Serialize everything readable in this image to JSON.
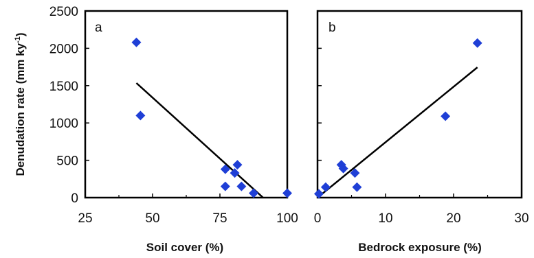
{
  "colors": {
    "marker": "#1f3fd6",
    "axis": "#000000",
    "fit_line": "#000000"
  },
  "shared_ylabel": "Denudation rate (mm ky",
  "shared_ylabel_superscript": "-1",
  "shared_ylabel_suffix": ")",
  "chart_data": [
    {
      "type": "scatter",
      "panel_label": "a",
      "xlabel": "Soil cover (%)",
      "ylabel": "Denudation rate (mm ky-1)",
      "xlim": [
        25,
        100
      ],
      "ylim": [
        0,
        2500
      ],
      "xticks": [
        "25",
        "50",
        "75",
        "100"
      ],
      "yticks": [
        "0",
        "500",
        "1000",
        "1500",
        "2000",
        "2500"
      ],
      "points": [
        {
          "x": 44,
          "y": 2080
        },
        {
          "x": 45.5,
          "y": 1100
        },
        {
          "x": 77,
          "y": 380
        },
        {
          "x": 77,
          "y": 150
        },
        {
          "x": 80.5,
          "y": 330
        },
        {
          "x": 81.5,
          "y": 440
        },
        {
          "x": 83,
          "y": 150
        },
        {
          "x": 87.5,
          "y": 60
        },
        {
          "x": 100,
          "y": 60
        }
      ],
      "fit_line": [
        {
          "x": 44,
          "y": 1535
        },
        {
          "x": 91,
          "y": 0
        }
      ]
    },
    {
      "type": "scatter",
      "panel_label": "b",
      "xlabel": "Bedrock exposure (%)",
      "ylabel": "",
      "xlim": [
        0,
        30
      ],
      "ylim": [
        0,
        2500
      ],
      "xticks": [
        "0",
        "10",
        "20",
        "30"
      ],
      "yticks": [],
      "points": [
        {
          "x": 0.2,
          "y": 50
        },
        {
          "x": 1.2,
          "y": 140
        },
        {
          "x": 3.5,
          "y": 440
        },
        {
          "x": 3.8,
          "y": 390
        },
        {
          "x": 5.5,
          "y": 330
        },
        {
          "x": 5.8,
          "y": 140
        },
        {
          "x": 18.8,
          "y": 1090
        },
        {
          "x": 23.5,
          "y": 2070
        }
      ],
      "fit_line": [
        {
          "x": 0,
          "y": 0
        },
        {
          "x": 23.5,
          "y": 1745
        }
      ]
    }
  ]
}
